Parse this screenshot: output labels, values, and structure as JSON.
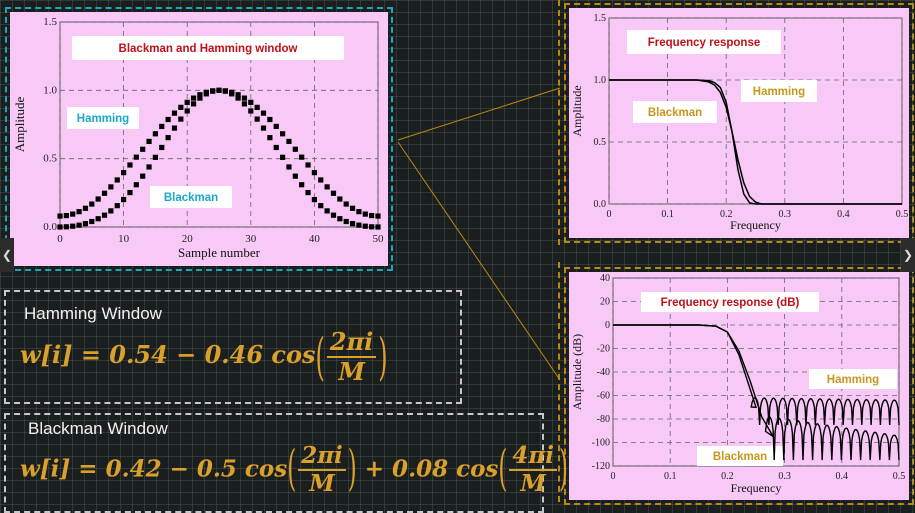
{
  "colors": {
    "panel_bg": "#f8c9f6",
    "title_text": "#c0101a",
    "label_cyan": "#1aa9c6",
    "label_gold": "#c8961b",
    "formula": "#d9a12b",
    "curve": "#000000"
  },
  "hamming": {
    "title": "Hamming Window",
    "lhs": "w[i] = 0.54 − 0.46 cos",
    "num": "2πi",
    "den": "M"
  },
  "blackman": {
    "title": "Blackman  Window",
    "lhs": "w[i] = 0.42 − 0.5 cos",
    "num1": "2πi",
    "den1": "M",
    "mid": "+ 0.08 cos",
    "num2": "4πi",
    "den2": "M"
  },
  "chart_data": [
    {
      "type": "scatter",
      "title": "Blackman and Hamming window",
      "xlabel": "Sample number",
      "ylabel": "Amplitude",
      "xlim": [
        0,
        50
      ],
      "ylim": [
        0,
        1.5
      ],
      "xticks": [
        "0",
        "10",
        "20",
        "30",
        "40",
        "50"
      ],
      "yticks": [
        "0.0",
        "0.5",
        "1.0",
        "1.5"
      ],
      "grid": true,
      "annotations": [
        "Hamming",
        "Blackman"
      ],
      "series": [
        {
          "name": "Hamming",
          "formula": "0.54 - 0.46*cos(2*pi*i/M)",
          "M": 50,
          "x_range": [
            0,
            50
          ]
        },
        {
          "name": "Blackman",
          "formula": "0.42 - 0.5*cos(2*pi*i/M) + 0.08*cos(4*pi*i/M)",
          "M": 50,
          "x_range": [
            0,
            50
          ]
        }
      ]
    },
    {
      "type": "line",
      "title": "Frequency response",
      "xlabel": "Frequency",
      "ylabel": "Amplitude",
      "xlim": [
        0,
        0.5
      ],
      "ylim": [
        0,
        1.5
      ],
      "xticks": [
        "0",
        "0.1",
        "0.2",
        "0.3",
        "0.4",
        "0.5"
      ],
      "yticks": [
        "0.0",
        "0.5",
        "1.0",
        "1.5"
      ],
      "grid": true,
      "annotations": [
        "Blackman",
        "Hamming"
      ],
      "series": [
        {
          "name": "Hamming",
          "x": [
            0,
            0.1,
            0.15,
            0.17,
            0.18,
            0.19,
            0.2,
            0.21,
            0.22,
            0.23,
            0.24,
            0.25,
            0.3,
            0.5
          ],
          "y": [
            1.0,
            1.0,
            1.0,
            0.995,
            0.98,
            0.94,
            0.82,
            0.58,
            0.28,
            0.08,
            0.01,
            0.0,
            0.0,
            0.0
          ]
        },
        {
          "name": "Blackman",
          "x": [
            0,
            0.1,
            0.15,
            0.17,
            0.18,
            0.19,
            0.2,
            0.21,
            0.22,
            0.23,
            0.24,
            0.25,
            0.26,
            0.3,
            0.5
          ],
          "y": [
            1.0,
            1.0,
            1.0,
            0.985,
            0.96,
            0.9,
            0.78,
            0.58,
            0.36,
            0.17,
            0.06,
            0.015,
            0.0,
            0.0,
            0.0
          ]
        }
      ]
    },
    {
      "type": "line",
      "title": "Frequency response (dB)",
      "xlabel": "Frequency",
      "ylabel": "Amplitude (dB)",
      "xlim": [
        0,
        0.5
      ],
      "ylim": [
        -120,
        40
      ],
      "xticks": [
        "0",
        "0.1",
        "0.2",
        "0.3",
        "0.4",
        "0.5"
      ],
      "yticks": [
        "40",
        "20",
        "0",
        "-20",
        "-40",
        "-60",
        "-80",
        "-100",
        "-120"
      ],
      "grid": true,
      "annotations": [
        "Hamming",
        "Blackman"
      ],
      "series": [
        {
          "name": "Hamming",
          "x": [
            0,
            0.15,
            0.18,
            0.2,
            0.22,
            0.24,
            0.25
          ],
          "y": [
            0,
            0,
            -1,
            -6,
            -25,
            -55,
            -70
          ],
          "sidelobe_level_db": -62,
          "null_depth_db": -85,
          "sidelobe_start": 0.24
        },
        {
          "name": "Blackman",
          "x": [
            0,
            0.15,
            0.18,
            0.2,
            0.22,
            0.24,
            0.26,
            0.28
          ],
          "y": [
            0,
            0,
            -1,
            -6,
            -22,
            -48,
            -78,
            -95
          ],
          "sidelobe_level_db": -78,
          "sidelobe_level_end_db": -95,
          "null_depth_db": -115,
          "sidelobe_start": 0.265
        }
      ]
    }
  ]
}
